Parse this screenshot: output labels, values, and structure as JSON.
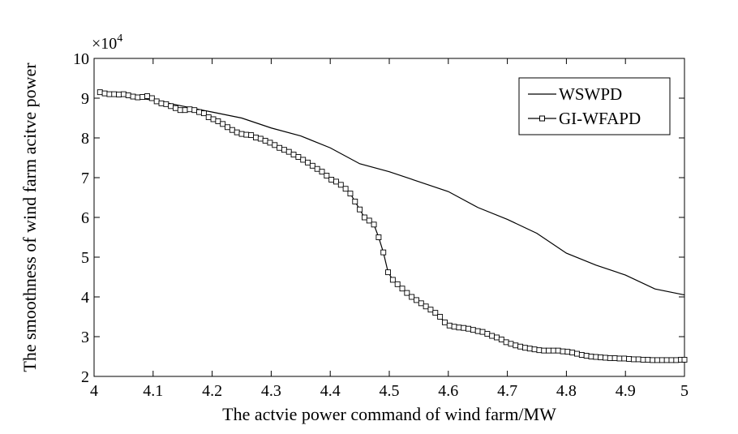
{
  "chart_data": {
    "type": "line",
    "title": "",
    "xlabel": "The actvie power command of wind farm/MW",
    "ylabel": "The smoothness of wind farm acitve power",
    "y_multiplier": "×10^4",
    "y_multiplier_base": "×10",
    "y_multiplier_exp": "4",
    "xlim": [
      4.0,
      5.0
    ],
    "ylim": [
      2,
      10
    ],
    "x_ticks": [
      "4",
      "4.1",
      "4.2",
      "4.3",
      "4.4",
      "4.5",
      "4.6",
      "4.7",
      "4.8",
      "4.9",
      "5"
    ],
    "y_ticks": [
      "2",
      "3",
      "4",
      "5",
      "6",
      "7",
      "8",
      "9",
      "10"
    ],
    "grid": false,
    "legend_position": "top-right",
    "series": [
      {
        "name": "WSWPD",
        "marker": "none",
        "x": [
          4.01,
          4.05,
          4.1,
          4.15,
          4.2,
          4.25,
          4.3,
          4.35,
          4.4,
          4.45,
          4.5,
          4.55,
          4.6,
          4.65,
          4.7,
          4.75,
          4.8,
          4.85,
          4.9,
          4.95,
          5.0
        ],
        "y": [
          9.1,
          9.05,
          8.95,
          8.8,
          8.65,
          8.5,
          8.25,
          8.05,
          7.75,
          7.35,
          7.15,
          6.9,
          6.65,
          6.25,
          5.95,
          5.6,
          5.1,
          4.8,
          4.55,
          4.2,
          4.05
        ]
      },
      {
        "name": "GI-WFAPD",
        "marker": "square",
        "x": [
          4.01,
          4.018,
          4.026,
          4.034,
          4.042,
          4.05,
          4.058,
          4.066,
          4.074,
          4.082,
          4.09,
          4.098,
          4.106,
          4.114,
          4.122,
          4.13,
          4.138,
          4.146,
          4.154,
          4.162,
          4.17,
          4.178,
          4.186,
          4.194,
          4.202,
          4.21,
          4.218,
          4.226,
          4.234,
          4.242,
          4.25,
          4.258,
          4.266,
          4.274,
          4.282,
          4.29,
          4.298,
          4.306,
          4.314,
          4.322,
          4.33,
          4.338,
          4.346,
          4.354,
          4.362,
          4.37,
          4.378,
          4.386,
          4.394,
          4.402,
          4.41,
          4.418,
          4.426,
          4.434,
          4.442,
          4.45,
          4.458,
          4.466,
          4.474,
          4.482,
          4.49,
          4.498,
          4.506,
          4.514,
          4.522,
          4.53,
          4.538,
          4.546,
          4.554,
          4.562,
          4.57,
          4.578,
          4.586,
          4.594,
          4.602,
          4.61,
          4.618,
          4.626,
          4.634,
          4.642,
          4.65,
          4.658,
          4.666,
          4.674,
          4.682,
          4.69,
          4.698,
          4.706,
          4.714,
          4.722,
          4.73,
          4.738,
          4.746,
          4.754,
          4.762,
          4.77,
          4.778,
          4.786,
          4.794,
          4.802,
          4.81,
          4.818,
          4.826,
          4.834,
          4.842,
          4.85,
          4.858,
          4.866,
          4.874,
          4.882,
          4.89,
          4.898,
          4.906,
          4.914,
          4.922,
          4.93,
          4.938,
          4.946,
          4.954,
          4.962,
          4.97,
          4.978,
          4.986,
          4.994,
          5.0
        ],
        "y": [
          9.15,
          9.12,
          9.1,
          9.1,
          9.09,
          9.1,
          9.07,
          9.04,
          9.02,
          9.03,
          9.05,
          9.0,
          8.92,
          8.87,
          8.85,
          8.8,
          8.75,
          8.7,
          8.7,
          8.72,
          8.7,
          8.65,
          8.62,
          8.52,
          8.47,
          8.42,
          8.35,
          8.27,
          8.2,
          8.14,
          8.1,
          8.08,
          8.07,
          8.01,
          7.98,
          7.93,
          7.88,
          7.82,
          7.75,
          7.7,
          7.65,
          7.58,
          7.52,
          7.45,
          7.38,
          7.3,
          7.22,
          7.15,
          7.05,
          6.95,
          6.9,
          6.82,
          6.72,
          6.6,
          6.4,
          6.2,
          6.0,
          5.92,
          5.82,
          5.5,
          5.12,
          4.62,
          4.43,
          4.32,
          4.21,
          4.1,
          4.0,
          3.92,
          3.84,
          3.76,
          3.68,
          3.6,
          3.5,
          3.36,
          3.28,
          3.25,
          3.23,
          3.22,
          3.2,
          3.17,
          3.14,
          3.12,
          3.07,
          3.02,
          2.98,
          2.93,
          2.86,
          2.82,
          2.78,
          2.75,
          2.72,
          2.7,
          2.68,
          2.66,
          2.65,
          2.65,
          2.65,
          2.65,
          2.63,
          2.62,
          2.6,
          2.57,
          2.54,
          2.52,
          2.5,
          2.49,
          2.48,
          2.47,
          2.46,
          2.46,
          2.45,
          2.45,
          2.44,
          2.43,
          2.43,
          2.42,
          2.42,
          2.41,
          2.41,
          2.41,
          2.41,
          2.41,
          2.41,
          2.42,
          2.42
        ]
      }
    ]
  }
}
